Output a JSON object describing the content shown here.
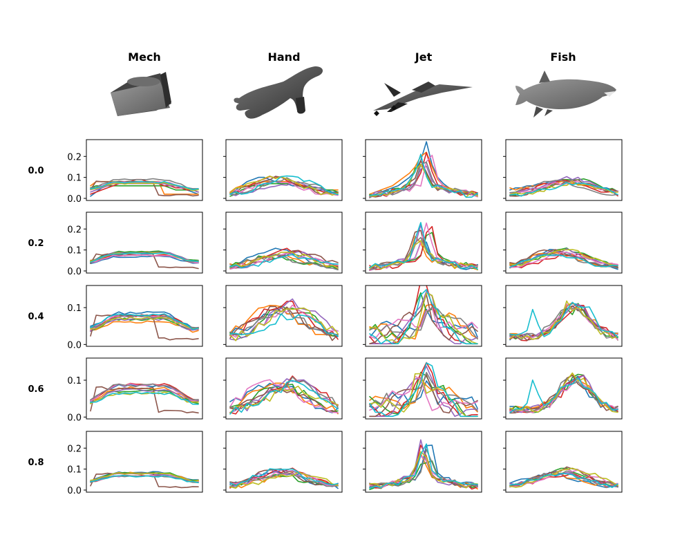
{
  "figure": {
    "columns": [
      "Mech",
      "Hand",
      "Jet",
      "Fish"
    ],
    "rows": [
      "0.0",
      "0.2",
      "0.4",
      "0.6",
      "0.8"
    ],
    "shape_icons": [
      "mech-shape-image",
      "hand-shape-image",
      "jet-shape-image",
      "fish-shape-image"
    ]
  },
  "palette": [
    "#1f77b4",
    "#ff7f0e",
    "#2ca02c",
    "#d62728",
    "#9467bd",
    "#8c564b",
    "#e377c2",
    "#7f7f7f",
    "#bcbd22",
    "#17becf"
  ],
  "chart_data": {
    "type": "line",
    "layout": "grid",
    "x_points": 20,
    "series_per_subplot": 10,
    "row_yaxes": [
      {
        "ticks": [
          0.0,
          0.1,
          0.2
        ],
        "tick_labels": [
          "0.0",
          "0.1",
          "0.2"
        ],
        "ylim": [
          -0.01,
          0.28
        ]
      },
      {
        "ticks": [
          0.0,
          0.1,
          0.2
        ],
        "tick_labels": [
          "0.0",
          "0.1",
          "0.2"
        ],
        "ylim": [
          -0.01,
          0.28
        ]
      },
      {
        "ticks": [
          0.0,
          0.1
        ],
        "tick_labels": [
          "0.0",
          "0.1"
        ],
        "ylim": [
          -0.005,
          0.16
        ]
      },
      {
        "ticks": [
          0.0,
          0.1
        ],
        "tick_labels": [
          "0.0",
          "0.1"
        ],
        "ylim": [
          -0.005,
          0.16
        ]
      },
      {
        "ticks": [
          0.0,
          0.1,
          0.2
        ],
        "tick_labels": [
          "0.0",
          "0.1",
          "0.2"
        ],
        "ylim": [
          -0.01,
          0.28
        ]
      }
    ],
    "column_profiles": [
      {
        "name": "Mech",
        "peak": [
          0.06,
          0.06,
          0.055
        ],
        "jitter": 0.004,
        "special": "step"
      },
      {
        "name": "Hand",
        "peak": [
          0.07,
          0.07,
          0.08
        ],
        "jitter": 0.012,
        "special": "hump"
      },
      {
        "name": "Jet",
        "peak": [
          0.14,
          0.13,
          0.08
        ],
        "jitter": 0.015,
        "special": "spike"
      },
      {
        "name": "Fish",
        "peak": [
          0.07,
          0.07,
          0.09
        ],
        "jitter": 0.01,
        "special": "rightpeak"
      }
    ],
    "series": [
      {
        "row": "0.0",
        "col": "Mech",
        "lines": [
          [
            0.01,
            0.03,
            0.05,
            0.06,
            0.07,
            0.08,
            0.08,
            0.08,
            0.08,
            0.08,
            0.08,
            0.08,
            0.08,
            0.07,
            0.07,
            0.06,
            0.05,
            0.04,
            0.03,
            0.02
          ],
          [
            0.06,
            0.08,
            0.08,
            0.08,
            0.08,
            0.08,
            0.08,
            0.08,
            0.08,
            0.08,
            0.08,
            0.08,
            0.08,
            0.02,
            0.02,
            0.02,
            0.02,
            0.02,
            0.02,
            0.02
          ],
          [
            0.05,
            0.06,
            0.06,
            0.06,
            0.06,
            0.06,
            0.06,
            0.06,
            0.06,
            0.06,
            0.06,
            0.06,
            0.06,
            0.06,
            0.05,
            0.04,
            0.04,
            0.04,
            0.04,
            0.03
          ],
          [
            0.02,
            0.03,
            0.04,
            0.05,
            0.06,
            0.07,
            0.07,
            0.08,
            0.09,
            0.09,
            0.08,
            0.07,
            0.07,
            0.06,
            0.06,
            0.05,
            0.05,
            0.04,
            0.04,
            0.03
          ],
          [
            0.03,
            0.04,
            0.05,
            0.06,
            0.07,
            0.07,
            0.07,
            0.07,
            0.07,
            0.07,
            0.07,
            0.07,
            0.07,
            0.07,
            0.06,
            0.06,
            0.05,
            0.05,
            0.04,
            0.03
          ]
        ]
      },
      {
        "row": "0.0",
        "col": "Hand",
        "lines": [
          [
            0.02,
            0.04,
            0.06,
            0.08,
            0.09,
            0.1,
            0.1,
            0.09,
            0.08,
            0.07,
            0.07,
            0.06,
            0.06,
            0.05,
            0.05,
            0.04,
            0.04,
            0.04,
            0.03,
            0.03
          ],
          [
            0.03,
            0.05,
            0.06,
            0.06,
            0.07,
            0.07,
            0.08,
            0.08,
            0.08,
            0.08,
            0.08,
            0.07,
            0.07,
            0.06,
            0.06,
            0.05,
            0.05,
            0.04,
            0.04,
            0.04
          ],
          [
            0.01,
            0.02,
            0.04,
            0.05,
            0.06,
            0.06,
            0.06,
            0.07,
            0.07,
            0.07,
            0.07,
            0.07,
            0.06,
            0.06,
            0.06,
            0.05,
            0.05,
            0.04,
            0.04,
            0.03
          ]
        ]
      },
      {
        "row": "0.0",
        "col": "Jet",
        "lines": [
          [
            0.01,
            0.02,
            0.03,
            0.04,
            0.05,
            0.06,
            0.08,
            0.1,
            0.13,
            0.18,
            0.27,
            0.16,
            0.1,
            0.07,
            0.05,
            0.04,
            0.03,
            0.03,
            0.02,
            0.02
          ],
          [
            0.02,
            0.03,
            0.04,
            0.05,
            0.06,
            0.08,
            0.1,
            0.12,
            0.15,
            0.2,
            0.22,
            0.15,
            0.09,
            0.06,
            0.05,
            0.04,
            0.03,
            0.03,
            0.02,
            0.01
          ]
        ]
      },
      {
        "row": "0.0",
        "col": "Fish",
        "lines": [
          [
            0.04,
            0.05,
            0.05,
            0.06,
            0.06,
            0.07,
            0.07,
            0.08,
            0.08,
            0.08,
            0.08,
            0.08,
            0.07,
            0.07,
            0.06,
            0.06,
            0.05,
            0.05,
            0.04,
            0.03
          ],
          [
            0.05,
            0.04,
            0.05,
            0.05,
            0.06,
            0.06,
            0.07,
            0.07,
            0.07,
            0.08,
            0.08,
            0.07,
            0.07,
            0.06,
            0.06,
            0.05,
            0.05,
            0.04,
            0.04,
            0.03
          ]
        ]
      }
    ]
  }
}
